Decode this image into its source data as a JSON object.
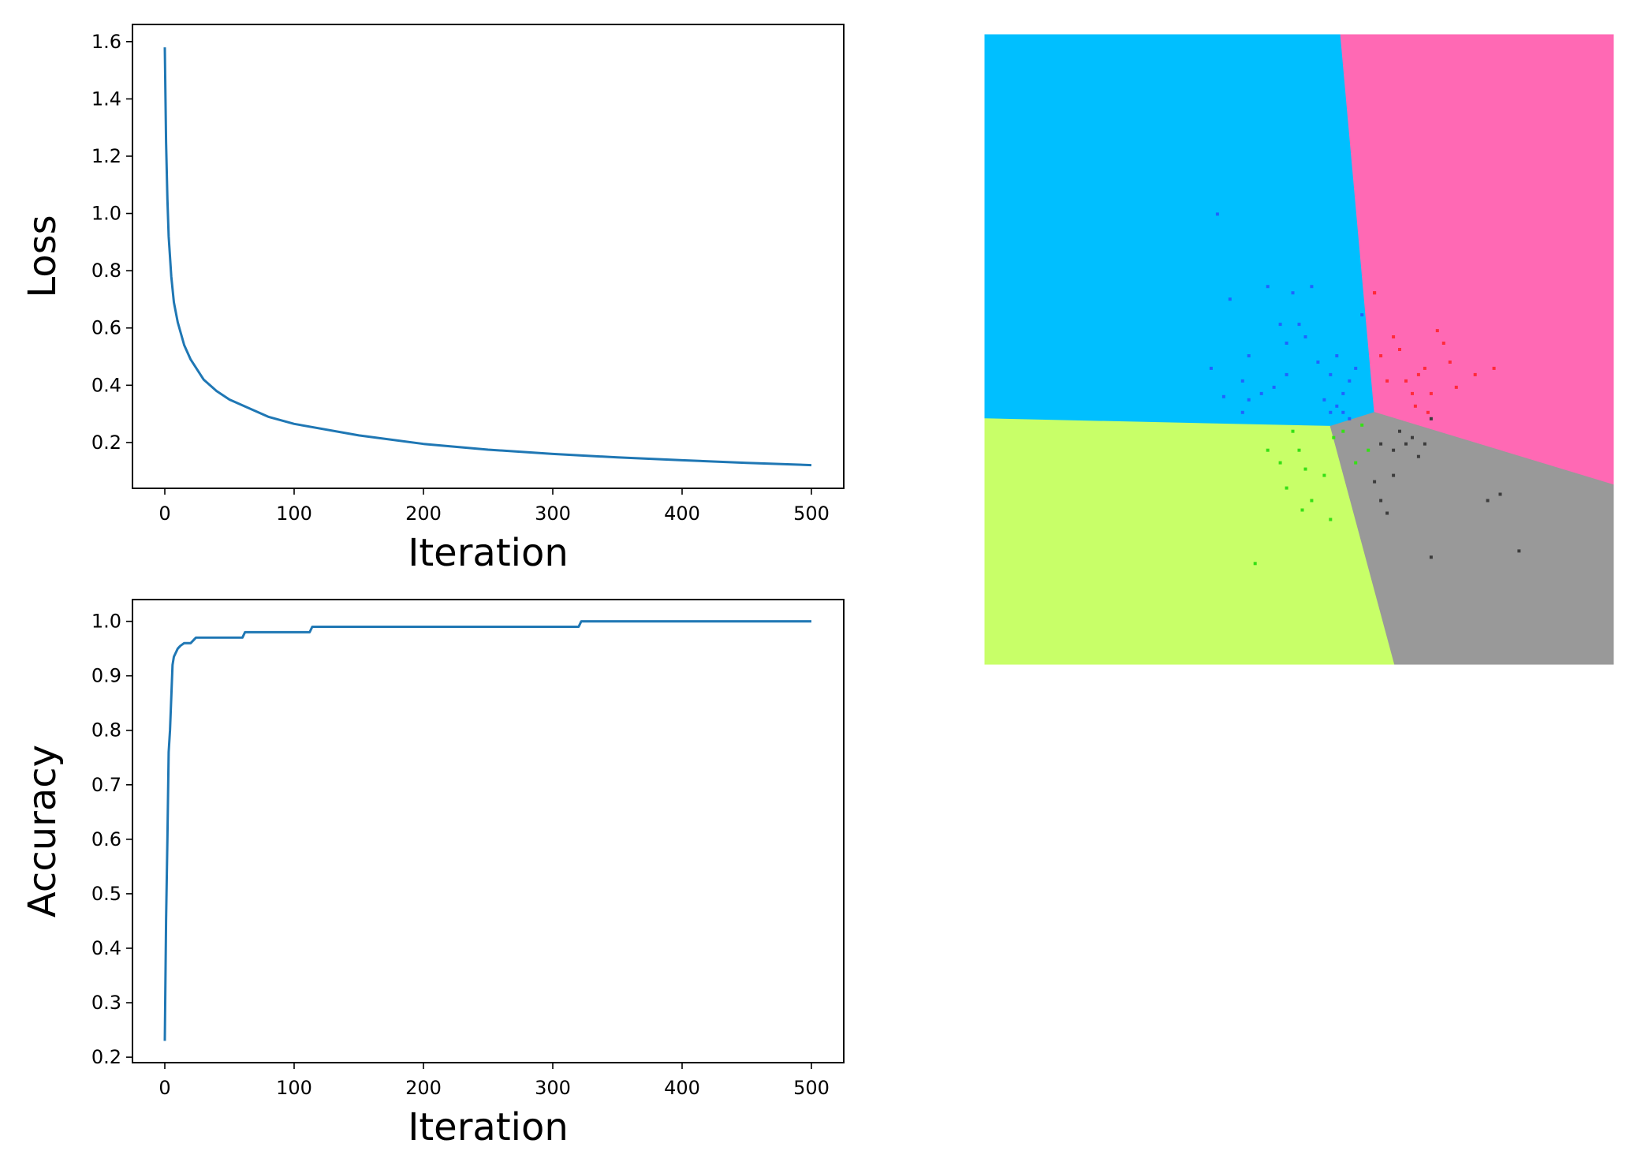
{
  "chart_data": [
    {
      "type": "line",
      "title": "",
      "xlabel": "Iteration",
      "ylabel": "Loss",
      "xlim": [
        -25,
        525
      ],
      "ylim": [
        0.04,
        1.66
      ],
      "xticks": [
        0,
        100,
        200,
        300,
        400,
        500
      ],
      "xtick_labels": [
        "0",
        "100",
        "200",
        "300",
        "400",
        "500"
      ],
      "yticks": [
        0.2,
        0.4,
        0.6,
        0.8,
        1.0,
        1.2,
        1.4,
        1.6
      ],
      "ytick_labels": [
        "0.2",
        "0.4",
        "0.6",
        "0.8",
        "1.0",
        "1.2",
        "1.4",
        "1.6"
      ],
      "grid": false,
      "color": "#1f77b4",
      "x": [
        0,
        1,
        2,
        3,
        5,
        7,
        10,
        15,
        20,
        30,
        40,
        50,
        60,
        80,
        100,
        150,
        200,
        250,
        300,
        350,
        400,
        450,
        500
      ],
      "y": [
        1.58,
        1.25,
        1.05,
        0.92,
        0.78,
        0.69,
        0.62,
        0.54,
        0.49,
        0.42,
        0.38,
        0.35,
        0.33,
        0.29,
        0.265,
        0.225,
        0.195,
        0.175,
        0.16,
        0.148,
        0.138,
        0.129,
        0.121
      ]
    },
    {
      "type": "line",
      "title": "",
      "xlabel": "Iteration",
      "ylabel": "Accuracy",
      "xlim": [
        -25,
        525
      ],
      "ylim": [
        0.19,
        1.04
      ],
      "xticks": [
        0,
        100,
        200,
        300,
        400,
        500
      ],
      "xtick_labels": [
        "0",
        "100",
        "200",
        "300",
        "400",
        "500"
      ],
      "yticks": [
        0.2,
        0.3,
        0.4,
        0.5,
        0.6,
        0.7,
        0.8,
        0.9,
        1.0
      ],
      "ytick_labels": [
        "0.2",
        "0.3",
        "0.4",
        "0.5",
        "0.6",
        "0.7",
        "0.8",
        "0.9",
        "1.0"
      ],
      "grid": false,
      "color": "#1f77b4",
      "x": [
        0,
        1,
        2,
        3,
        4,
        5,
        6,
        7,
        8,
        10,
        12,
        15,
        20,
        22,
        24,
        60,
        62,
        112,
        114,
        320,
        322,
        500
      ],
      "y": [
        0.23,
        0.45,
        0.6,
        0.76,
        0.8,
        0.86,
        0.92,
        0.935,
        0.94,
        0.95,
        0.955,
        0.96,
        0.96,
        0.965,
        0.97,
        0.97,
        0.98,
        0.98,
        0.99,
        0.99,
        1.0,
        1.0
      ]
    },
    {
      "type": "scatter",
      "title": "",
      "xlabel": "",
      "ylabel": "",
      "xlim": [
        0,
        100
      ],
      "ylim": [
        0,
        100
      ],
      "grid": false,
      "regions": [
        {
          "color": "#00bfff",
          "polygon": [
            [
              0,
              0
            ],
            [
              56.6,
              0
            ],
            [
              62,
              60
            ],
            [
              55,
              62.2
            ],
            [
              0,
              61
            ]
          ]
        },
        {
          "color": "#ff69b4",
          "polygon": [
            [
              56.6,
              0
            ],
            [
              100,
              0
            ],
            [
              100,
              71.5
            ],
            [
              62,
              60
            ]
          ]
        },
        {
          "color": "#c8ff68",
          "polygon": [
            [
              0,
              61
            ],
            [
              55,
              62.2
            ],
            [
              65.2,
              100
            ],
            [
              0,
              100
            ]
          ]
        },
        {
          "color": "#999999",
          "polygon": [
            [
              55,
              62.2
            ],
            [
              62,
              60
            ],
            [
              100,
              71.5
            ],
            [
              100,
              100
            ],
            [
              65.2,
              100
            ]
          ]
        }
      ],
      "series": [
        {
          "color": "#1e64ff",
          "x": [
            39,
            37,
            45,
            47,
            48,
            42,
            41,
            36,
            51,
            53,
            55,
            56,
            57,
            56,
            54,
            58,
            59,
            57,
            52,
            49,
            48,
            46,
            44,
            42,
            41,
            38,
            58,
            60,
            55,
            50
          ],
          "y": [
            42,
            28.5,
            40,
            46,
            49,
            51,
            55,
            53,
            48,
            52,
            54,
            51,
            57,
            59,
            58,
            55,
            53,
            60,
            40,
            41,
            54,
            56,
            57,
            58,
            60,
            57.5,
            61,
            44.5,
            60,
            46
          ]
        },
        {
          "color": "#ff2a3a",
          "x": 62,
          "y": 41
        },
        {
          "color": "#ff2a3a",
          "x": [
            62,
            66,
            69,
            71,
            73,
            75,
            78,
            81,
            65,
            67,
            68,
            70,
            72,
            74,
            63,
            64,
            68.5,
            70.5
          ],
          "y": [
            41,
            50,
            54,
            57,
            49,
            56,
            54,
            53,
            48,
            55,
            57,
            53,
            47,
            52,
            51,
            55,
            59,
            60
          ]
        },
        {
          "color": "#3c3c3c",
          "x": [
            63,
            65,
            66,
            68,
            69,
            70,
            65,
            62,
            63,
            64,
            71,
            80,
            82,
            85,
            71,
            67
          ],
          "y": [
            65,
            66,
            63,
            64,
            67,
            65,
            70,
            71,
            74,
            76,
            61,
            74,
            73,
            82,
            83,
            65
          ]
        },
        {
          "color": "#35e015",
          "x": [
            49,
            50,
            47,
            51,
            54,
            48,
            45,
            52,
            55,
            57,
            59,
            60,
            61,
            43,
            50.5,
            55.5
          ],
          "y": [
            63,
            66,
            68,
            69,
            70,
            72,
            66,
            74,
            77,
            63,
            68,
            62,
            66,
            84,
            75.5,
            64
          ]
        }
      ]
    }
  ]
}
